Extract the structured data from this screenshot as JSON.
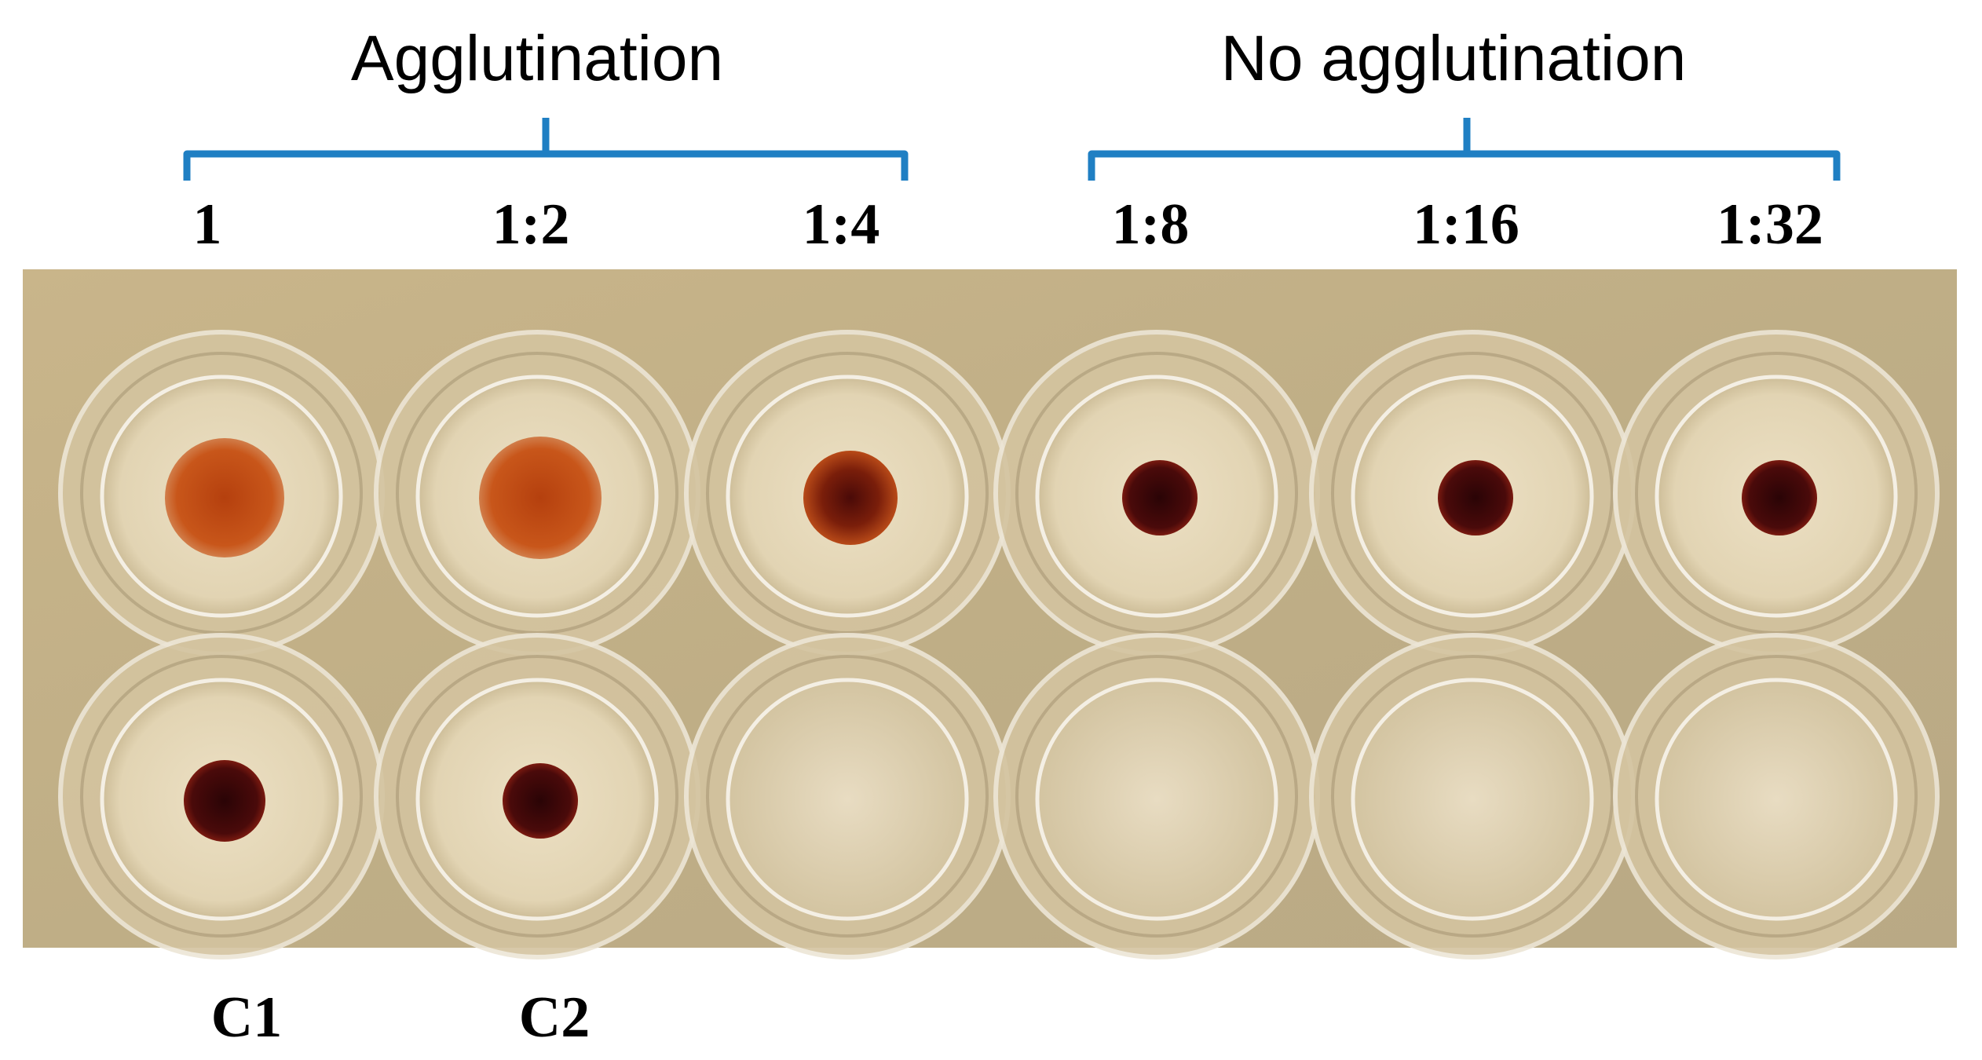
{
  "header": {
    "left_label": "Agglutination",
    "right_label": "No agglutination"
  },
  "dilutions": [
    "1",
    "1:2",
    "1:4",
    "1:8",
    "1:16",
    "1:32"
  ],
  "controls": [
    "C1",
    "C2"
  ]
}
